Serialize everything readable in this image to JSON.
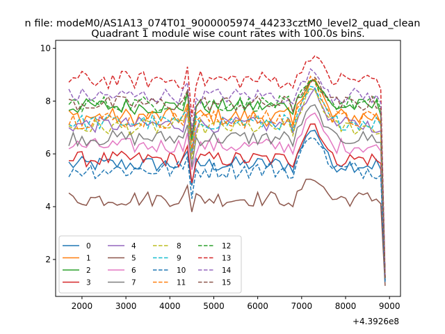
{
  "chart_data": {
    "type": "line",
    "suptitle": "n file: modeM0/AS1A13_074T01_9000005974_44233cztM0_level2_quad_clean",
    "title": "Quadrant 1 module wise count rates with 100.0s bins.",
    "xlabel": "",
    "ylabel": "",
    "offset_text": "+4.3926e8",
    "xlim": [
      1400,
      9250
    ],
    "ylim": [
      0.6,
      10.3
    ],
    "xticks": [
      2000,
      3000,
      4000,
      5000,
      6000,
      7000,
      8000,
      9000
    ],
    "yticks": [
      2,
      4,
      6,
      8,
      10
    ],
    "legend_loc": "lower-left",
    "grid": false,
    "x_start": 1700,
    "x_step": 100,
    "x_end": 8900,
    "colors": [
      "#1f77b4",
      "#ff7f0e",
      "#2ca02c",
      "#d62728",
      "#9467bd",
      "#8c564b",
      "#e377c2",
      "#7f7f7f",
      "#bcbd22",
      "#17becf"
    ],
    "series": [
      {
        "name": "0",
        "level": 5.6,
        "amp": 0.3,
        "dip": 4.8,
        "peak": 7.1,
        "dash": false
      },
      {
        "name": "1",
        "level": 7.4,
        "amp": 0.35,
        "dip": 6.0,
        "peak": 9.0,
        "dash": false
      },
      {
        "name": "2",
        "level": 7.8,
        "amp": 0.3,
        "dip": 6.5,
        "peak": 8.9,
        "dash": false
      },
      {
        "name": "3",
        "level": 5.8,
        "amp": 0.3,
        "dip": 4.9,
        "peak": 7.3,
        "dash": false
      },
      {
        "name": "4",
        "level": 7.1,
        "amp": 0.3,
        "dip": 6.0,
        "peak": 8.5,
        "dash": false
      },
      {
        "name": "5",
        "level": 4.3,
        "amp": 0.3,
        "dip": 3.8,
        "peak": 5.2,
        "dash": false
      },
      {
        "name": "6",
        "level": 6.3,
        "amp": 0.3,
        "dip": 5.4,
        "peak": 7.6,
        "dash": false
      },
      {
        "name": "7",
        "level": 6.6,
        "amp": 0.3,
        "dip": 5.5,
        "peak": 7.9,
        "dash": false
      },
      {
        "name": "8",
        "level": 7.0,
        "amp": 0.3,
        "dip": 5.8,
        "peak": 8.6,
        "dash": true
      },
      {
        "name": "9",
        "level": 7.2,
        "amp": 0.3,
        "dip": 6.1,
        "peak": 8.6,
        "dash": true
      },
      {
        "name": "10",
        "level": 5.4,
        "amp": 0.35,
        "dip": 4.3,
        "peak": 6.9,
        "dash": true
      },
      {
        "name": "11",
        "level": 7.3,
        "amp": 0.35,
        "dip": 6.2,
        "peak": 9.0,
        "dash": true
      },
      {
        "name": "12",
        "level": 7.9,
        "amp": 0.3,
        "dip": 6.6,
        "peak": 8.8,
        "dash": true
      },
      {
        "name": "13",
        "level": 8.8,
        "amp": 0.35,
        "dip": 7.4,
        "peak": 9.8,
        "dash": true
      },
      {
        "name": "14",
        "level": 8.2,
        "amp": 0.3,
        "dip": 6.9,
        "peak": 9.2,
        "dash": true
      },
      {
        "name": "15",
        "level": 7.9,
        "amp": 0.3,
        "dip": 6.7,
        "peak": 8.9,
        "dash": true
      }
    ],
    "end_values": [
      1.2,
      1.3,
      1.3,
      1.2,
      1.3,
      1.0,
      1.2,
      1.2,
      1.3,
      1.3,
      1.1,
      1.3,
      1.3,
      1.4,
      1.3,
      1.3
    ]
  }
}
